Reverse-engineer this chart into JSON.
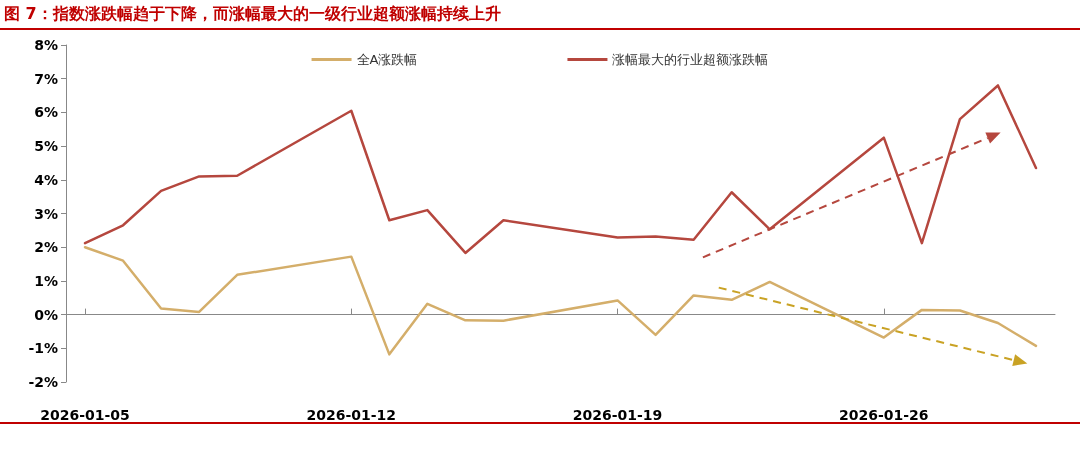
{
  "chart_data": {
    "type": "line",
    "title": "图 7：指数涨跌幅趋于下降，而涨幅最大的一级行业超额涨幅持续上升",
    "x": [
      "2026-01-05",
      "2026-01-06",
      "2026-01-07",
      "2026-01-08",
      "2026-01-09",
      "2026-01-12",
      "2026-01-13",
      "2026-01-14",
      "2026-01-15",
      "2026-01-16",
      "2026-01-19",
      "2026-01-20",
      "2026-01-21",
      "2026-01-22",
      "2026-01-23",
      "2026-01-26",
      "2026-01-27",
      "2026-01-28",
      "2026-01-29",
      "2026-01-30"
    ],
    "series": [
      {
        "name": "全A涨跌幅",
        "color": "#d4ae6a",
        "values": [
          2.0,
          1.6,
          0.18,
          0.08,
          1.18,
          1.72,
          -1.18,
          0.32,
          -0.17,
          -0.18,
          0.42,
          -0.6,
          0.57,
          0.44,
          0.97,
          -0.68,
          0.14,
          0.12,
          -0.25,
          -0.93
        ]
      },
      {
        "name": "涨幅最大的行业超额涨跌幅",
        "color": "#b5473e",
        "values": [
          2.12,
          2.65,
          3.67,
          4.1,
          4.12,
          6.05,
          2.8,
          3.1,
          1.83,
          2.8,
          2.29,
          2.32,
          2.22,
          3.63,
          2.53,
          5.25,
          2.12,
          5.8,
          6.8,
          4.35
        ]
      }
    ],
    "xlim": [
      "2026-01-04T12:00",
      "2026-01-30T12:00"
    ],
    "xticks": [
      {
        "value": "2026-01-05",
        "label": "2026-01-05"
      },
      {
        "value": "2026-01-12",
        "label": "2026-01-12"
      },
      {
        "value": "2026-01-19",
        "label": "2026-01-19"
      },
      {
        "value": "2026-01-26",
        "label": "2026-01-26"
      }
    ],
    "ylim": [
      -2,
      8
    ],
    "yticks": [
      {
        "value": -2,
        "label": "-2%"
      },
      {
        "value": -1,
        "label": "-1%"
      },
      {
        "value": 0,
        "label": "0%"
      },
      {
        "value": 1,
        "label": "1%"
      },
      {
        "value": 2,
        "label": "2%"
      },
      {
        "value": 3,
        "label": "3%"
      },
      {
        "value": 4,
        "label": "4%"
      },
      {
        "value": 5,
        "label": "5%"
      },
      {
        "value": 6,
        "label": "6%"
      },
      {
        "value": 7,
        "label": "7%"
      },
      {
        "value": 8,
        "label": "8%"
      }
    ],
    "legend": "top",
    "marker": "none",
    "line_style": "solid"
  }
}
